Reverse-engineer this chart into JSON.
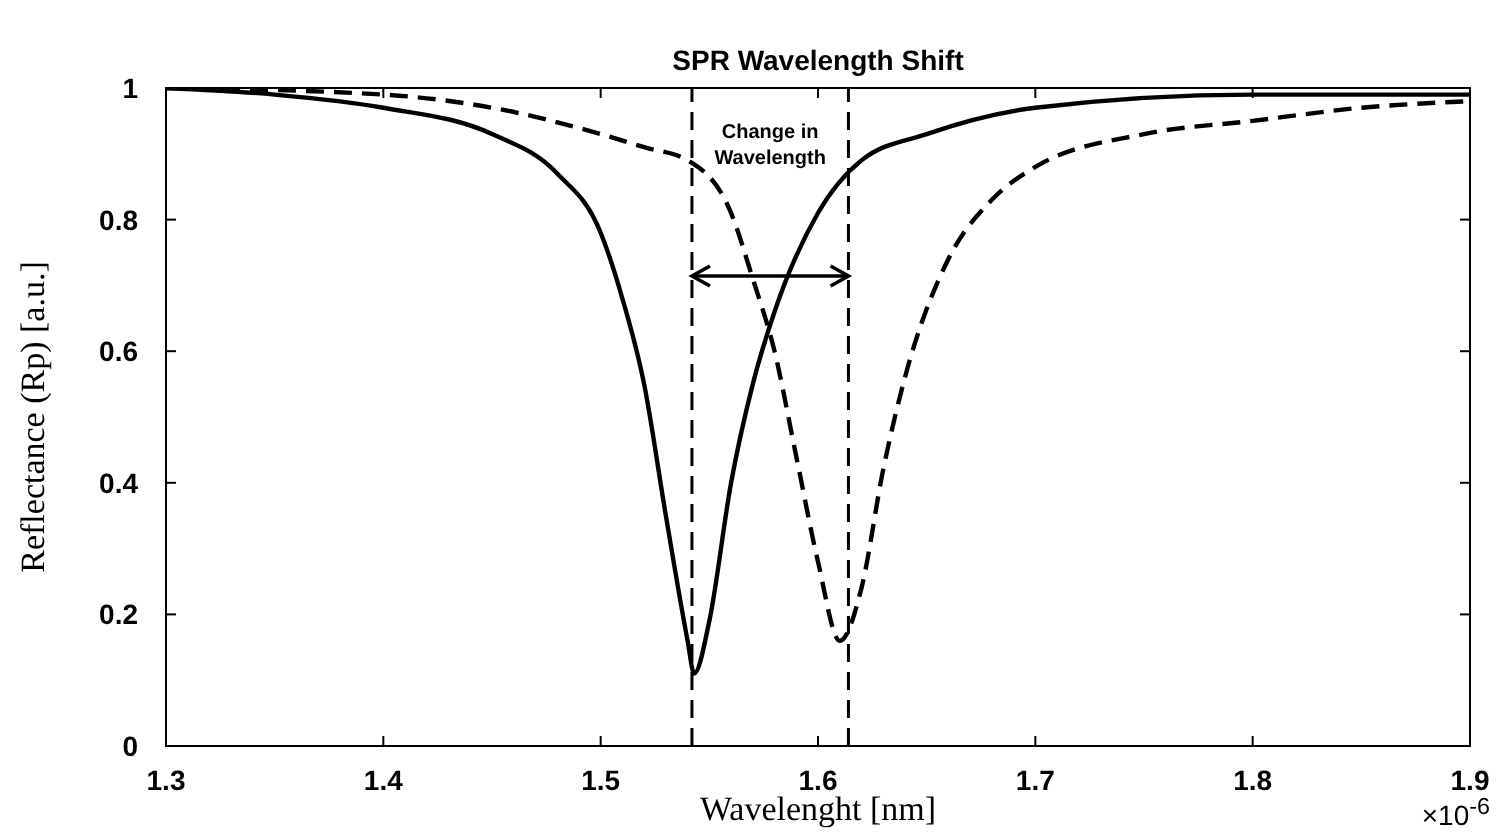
{
  "chart_data": {
    "type": "line",
    "title": "SPR Wavelength Shift",
    "xlabel": "Wavelenght [nm]",
    "ylabel": "Reflectance (Rp) [a.u.]",
    "series": [
      {
        "color": "#000000",
        "line_style": "solid",
        "x": [
          1.3,
          1.35,
          1.4,
          1.45,
          1.48,
          1.5,
          1.51,
          1.52,
          1.53,
          1.54,
          1.543,
          1.55,
          1.56,
          1.57,
          1.58,
          1.6,
          1.62,
          1.65,
          1.7,
          1.8,
          1.9
        ],
        "values": [
          1.0,
          0.99,
          0.97,
          0.93,
          0.87,
          0.78,
          0.68,
          0.55,
          0.35,
          0.16,
          0.11,
          0.19,
          0.4,
          0.55,
          0.66,
          0.81,
          0.89,
          0.93,
          0.97,
          0.99,
          0.99
        ]
      },
      {
        "color": "#000000",
        "line_style": "dashed",
        "x": [
          1.3,
          1.4,
          1.45,
          1.5,
          1.52,
          1.54,
          1.56,
          1.57,
          1.58,
          1.59,
          1.6,
          1.61,
          1.62,
          1.63,
          1.64,
          1.66,
          1.68,
          1.7,
          1.75,
          1.8,
          1.85,
          1.9
        ],
        "values": [
          1.0,
          0.99,
          0.97,
          0.93,
          0.91,
          0.89,
          0.81,
          0.71,
          0.6,
          0.44,
          0.28,
          0.16,
          0.24,
          0.42,
          0.56,
          0.74,
          0.83,
          0.88,
          0.93,
          0.95,
          0.97,
          0.98
        ]
      }
    ],
    "xlim": [
      1.3,
      1.9
    ],
    "xticks": [
      1.3,
      1.4,
      1.5,
      1.6,
      1.7,
      1.8,
      1.9
    ],
    "ylim": [
      0,
      1
    ],
    "yticks": [
      0,
      0.2,
      0.4,
      0.6,
      0.8,
      1
    ],
    "ref_lines": [
      {
        "axis": "x",
        "value": 1.542,
        "line_style": "dashed",
        "color": "#000000"
      },
      {
        "axis": "x",
        "value": 1.614,
        "line_style": "dashed",
        "color": "#000000"
      }
    ],
    "annotations": [
      "×10$^{-6}$",
      "Change in Wavelength"
    ]
  }
}
